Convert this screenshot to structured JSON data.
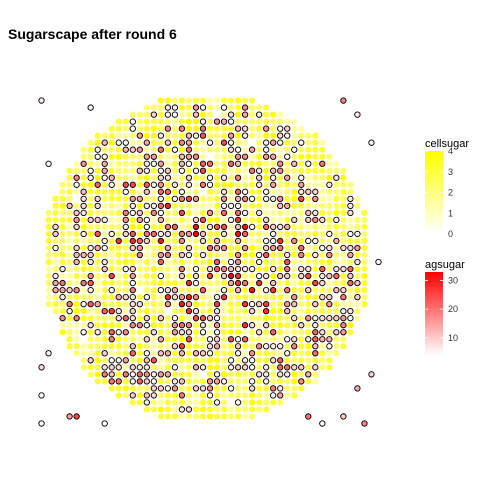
{
  "chart_data": {
    "type": "scatter",
    "title": "Sugarscape after round 6",
    "xlabel": "",
    "ylabel": "",
    "xlim": [
      0,
      50
    ],
    "ylim": [
      0,
      50
    ],
    "grid": false,
    "legend_position": "right",
    "cell_layer": {
      "name": "cellsugar",
      "shape": "disc",
      "grid_range": [
        0,
        49
      ],
      "center": [
        24.5,
        24.5
      ],
      "radius": 23.5,
      "value_range": [
        0,
        4
      ],
      "color_low": "#ffffff",
      "color_high": "#ffff00"
    },
    "agent_layer": {
      "name": "agsugar",
      "stroke": "#000000",
      "value_range": [
        4,
        33
      ],
      "color_low": "#ffffff",
      "color_high": "#ff0000",
      "count_approx": 620,
      "outlier_points": [
        {
          "x": 1,
          "y": 47,
          "agsugar": 6
        },
        {
          "x": 8,
          "y": 46,
          "agsugar": 5
        },
        {
          "x": 44,
          "y": 47,
          "agsugar": 18
        },
        {
          "x": 46,
          "y": 45,
          "agsugar": 6
        },
        {
          "x": 48,
          "y": 41,
          "agsugar": 5
        },
        {
          "x": 2,
          "y": 38,
          "agsugar": 4
        },
        {
          "x": 49,
          "y": 24,
          "agsugar": 5
        },
        {
          "x": 2,
          "y": 11,
          "agsugar": 5
        },
        {
          "x": 1,
          "y": 9,
          "agsugar": 8
        },
        {
          "x": 48,
          "y": 8,
          "agsugar": 9
        },
        {
          "x": 46,
          "y": 6,
          "agsugar": 14
        },
        {
          "x": 1,
          "y": 5,
          "agsugar": 4
        },
        {
          "x": 39,
          "y": 2,
          "agsugar": 20
        },
        {
          "x": 44,
          "y": 2,
          "agsugar": 10
        },
        {
          "x": 1,
          "y": 1,
          "agsugar": 5
        },
        {
          "x": 5,
          "y": 2,
          "agsugar": 15
        },
        {
          "x": 6,
          "y": 2,
          "agsugar": 25
        },
        {
          "x": 10,
          "y": 1,
          "agsugar": 4
        },
        {
          "x": 41,
          "y": 1,
          "agsugar": 5
        },
        {
          "x": 47,
          "y": 1,
          "agsugar": 18
        }
      ]
    },
    "legends": [
      {
        "title": "cellsugar",
        "ticks": [
          0,
          1,
          2,
          3,
          4
        ],
        "range": [
          0,
          4
        ],
        "color_low": "#ffffff",
        "color_high": "#ffff00"
      },
      {
        "title": "agsugar",
        "ticks": [
          10,
          20,
          30
        ],
        "range": [
          4,
          33
        ],
        "color_low": "#ffffff",
        "color_high": "#ff0000"
      }
    ]
  }
}
